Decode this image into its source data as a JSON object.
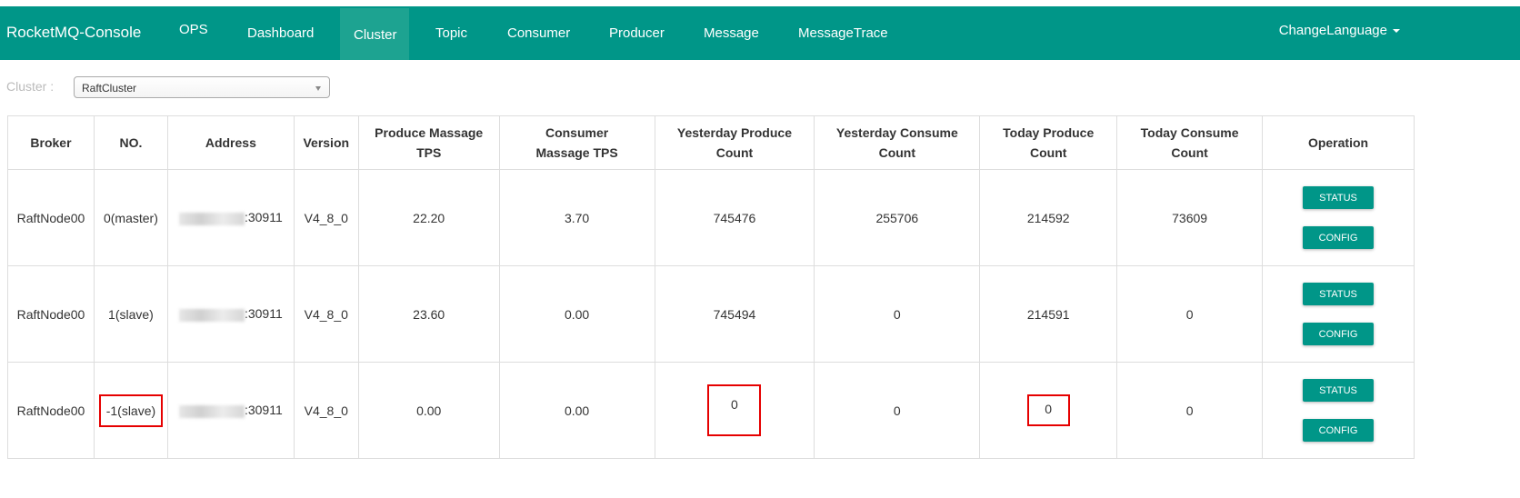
{
  "nav": {
    "brand": "RocketMQ-Console",
    "items": [
      "OPS",
      "Dashboard",
      "Cluster",
      "Topic",
      "Consumer",
      "Producer",
      "Message",
      "MessageTrace"
    ],
    "active": "Cluster",
    "language": "ChangeLanguage"
  },
  "filter": {
    "label": "Cluster :",
    "selected": "RaftCluster"
  },
  "table": {
    "headers": [
      "Broker",
      "NO.",
      "Address",
      "Version",
      "Produce Massage TPS",
      "Consumer Massage TPS",
      "Yesterday Produce Count",
      "Yesterday Consume Count",
      "Today Produce Count",
      "Today Consume Count",
      "Operation"
    ],
    "rows": [
      {
        "broker": "RaftNode00",
        "no": "0(master)",
        "port": ":30911",
        "version": "V4_8_0",
        "produce_tps": "22.20",
        "consume_tps": "3.70",
        "yest_prod": "745476",
        "yest_cons": "255706",
        "today_prod": "214592",
        "today_cons": "73609"
      },
      {
        "broker": "RaftNode00",
        "no": "1(slave)",
        "port": ":30911",
        "version": "V4_8_0",
        "produce_tps": "23.60",
        "consume_tps": "0.00",
        "yest_prod": "745494",
        "yest_cons": "0",
        "today_prod": "214591",
        "today_cons": "0"
      },
      {
        "broker": "RaftNode00",
        "no": "-1(slave)",
        "port": ":30911",
        "version": "V4_8_0",
        "produce_tps": "0.00",
        "consume_tps": "0.00",
        "yest_prod": "0",
        "yest_cons": "0",
        "today_prod": "0",
        "today_cons": "0"
      }
    ],
    "buttons": {
      "status": "STATUS",
      "config": "CONFIG"
    }
  },
  "colors": {
    "primary": "#009688",
    "highlight": "#e60000"
  }
}
